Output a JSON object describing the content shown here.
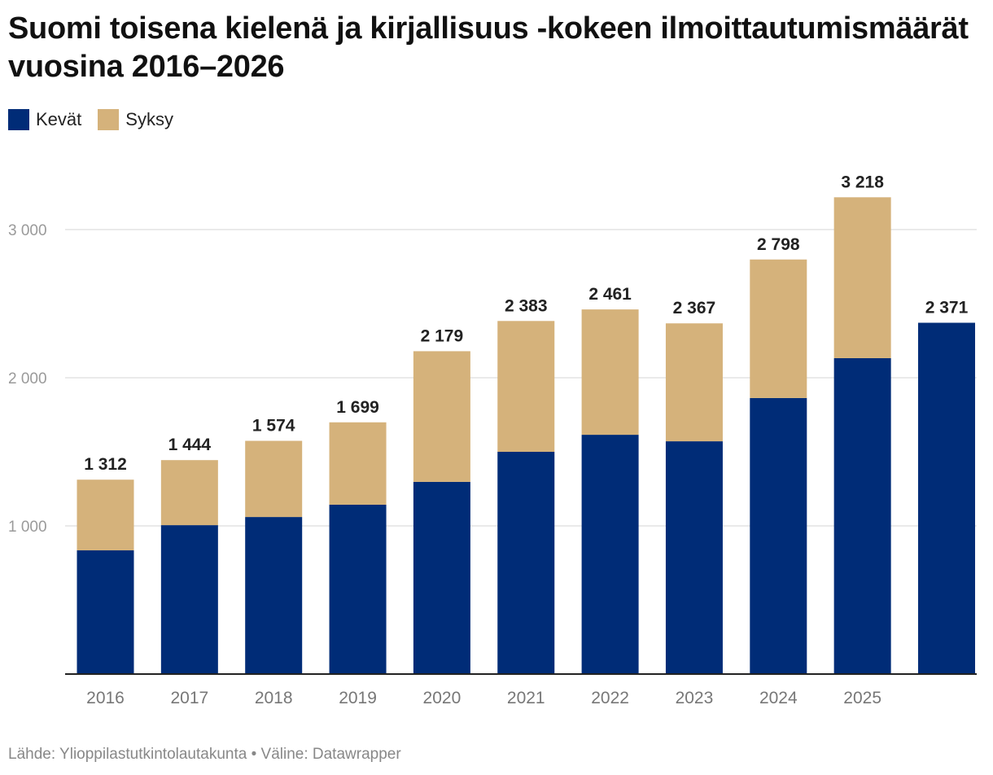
{
  "chart_data": {
    "type": "bar",
    "stacked": true,
    "title": "Suomi toisena kielenä ja kirjallisuus -kokeen ilmoittautumismäärät vuosina 2016–2026",
    "categories": [
      "2016",
      "2017",
      "2018",
      "2019",
      "2020",
      "2021",
      "2022",
      "2023",
      "2024",
      "2025",
      ""
    ],
    "series": [
      {
        "name": "Kevät",
        "color": "#002c77",
        "values": [
          835,
          1005,
          1060,
          1143,
          1297,
          1500,
          1615,
          1571,
          1863,
          2132,
          2371
        ]
      },
      {
        "name": "Syksy",
        "color": "#d5b27b",
        "values": [
          477,
          439,
          514,
          556,
          882,
          883,
          846,
          796,
          935,
          1086,
          0
        ]
      }
    ],
    "totals": [
      "1 312",
      "1 444",
      "1 574",
      "1 699",
      "2 179",
      "2 383",
      "2 461",
      "2 367",
      "2 798",
      "3 218",
      "2 371"
    ],
    "yticks": [
      {
        "value": 1000,
        "label": "1 000"
      },
      {
        "value": 2000,
        "label": "2 000"
      },
      {
        "value": 3000,
        "label": "3 000"
      }
    ],
    "ylim": [
      0,
      3000
    ],
    "grid": true,
    "legend_position": "top-left",
    "xlabel": "",
    "ylabel": ""
  },
  "source": "Lähde: Ylioppilastutkintolautakunta • Väline: Datawrapper"
}
